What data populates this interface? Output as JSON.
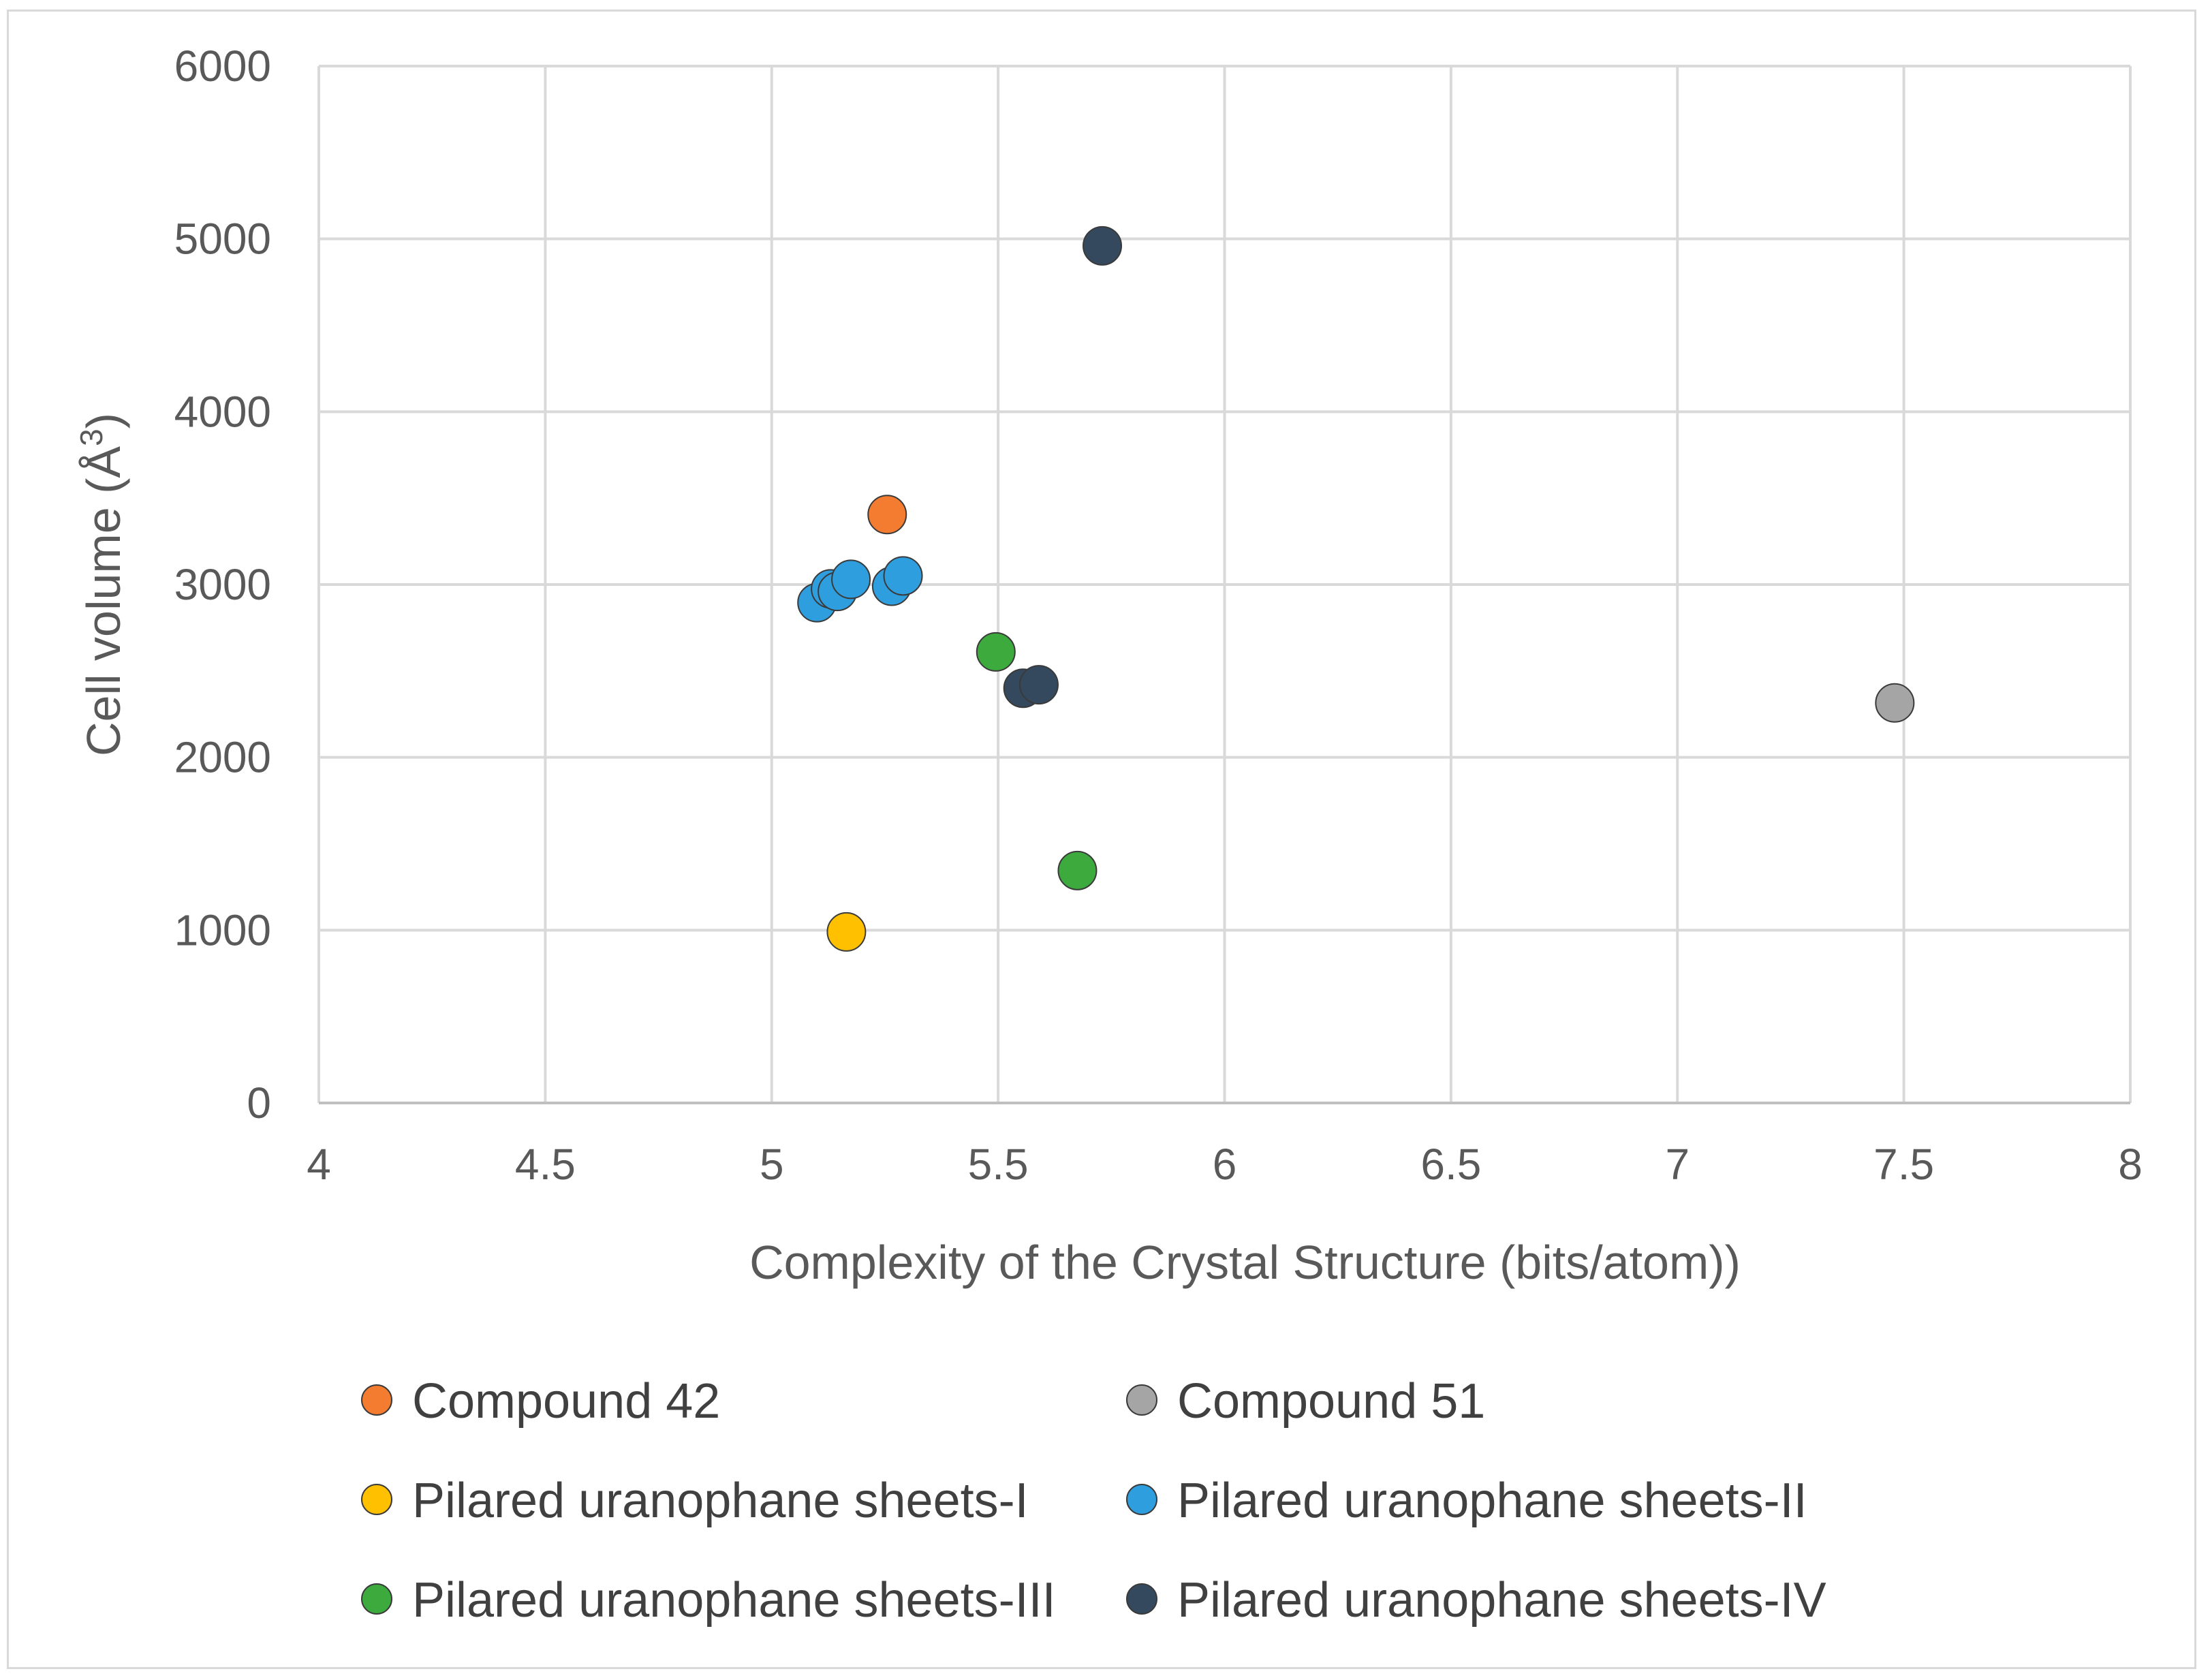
{
  "chart_data": {
    "type": "scatter",
    "title": "",
    "xlabel": "Complexity of the  Crystal Structure  (bits/atom))",
    "ylabel": "Cell volume (Å",
    "ylabel_superscript": "3",
    "ylabel_suffix": ")",
    "xlim": [
      4,
      8
    ],
    "ylim": [
      0,
      6000
    ],
    "x_ticks": [
      "4",
      "4.5",
      "5",
      "5.5",
      "6",
      "6.5",
      "7",
      "7.5",
      "8"
    ],
    "y_ticks": [
      "0",
      "1000",
      "2000",
      "3000",
      "4000",
      "5000",
      "6000"
    ],
    "grid": true,
    "legend_position": "bottom",
    "series": [
      {
        "name": "Compound 42",
        "color": "#f47c30",
        "points": [
          [
            5.255,
            3405
          ]
        ]
      },
      {
        "name": "Compound 51",
        "color": "#a5a5a5",
        "points": [
          [
            7.48,
            2315
          ]
        ]
      },
      {
        "name": "Pilared uranophane sheets-I",
        "color": "#ffc000",
        "points": [
          [
            5.165,
            990
          ]
        ]
      },
      {
        "name": "Pilared uranophane sheets-II",
        "color": "#2e9ede",
        "points": [
          [
            5.1,
            2895
          ],
          [
            5.13,
            2975
          ],
          [
            5.145,
            2960
          ],
          [
            5.175,
            3030
          ],
          [
            5.265,
            2990
          ],
          [
            5.29,
            3050
          ]
        ]
      },
      {
        "name": "Pilared uranophane sheets-III",
        "color": "#3daa3d",
        "points": [
          [
            5.495,
            2610
          ],
          [
            5.675,
            1345
          ]
        ]
      },
      {
        "name": "Pilared uranophane sheets-IV",
        "color": "#34495e",
        "points": [
          [
            5.73,
            4960
          ],
          [
            5.555,
            2400
          ],
          [
            5.59,
            2420
          ]
        ]
      }
    ]
  }
}
